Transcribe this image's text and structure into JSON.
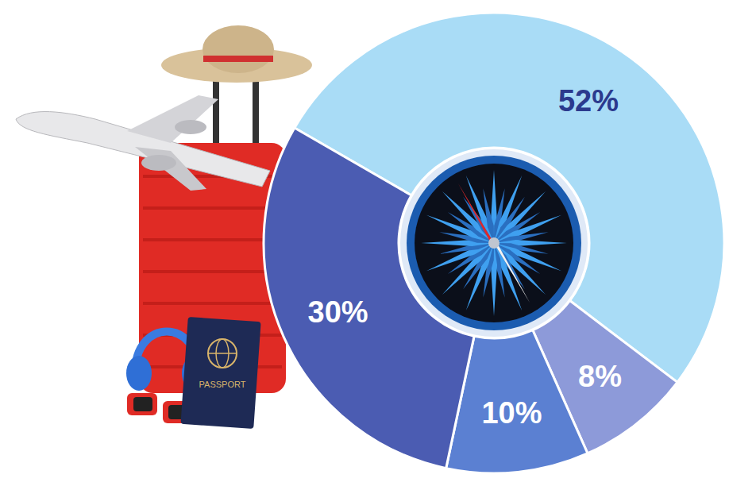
{
  "chart_data": {
    "type": "pie",
    "values": [
      52,
      8,
      10,
      30
    ],
    "value_labels": [
      "52%",
      "8%",
      "10%",
      "30%"
    ],
    "colors": [
      "#a9dcf6",
      "#8d9ad9",
      "#5b80d2",
      "#4b5cb2"
    ],
    "data_labels": true,
    "annotations": [
      "PASSPORT"
    ]
  }
}
